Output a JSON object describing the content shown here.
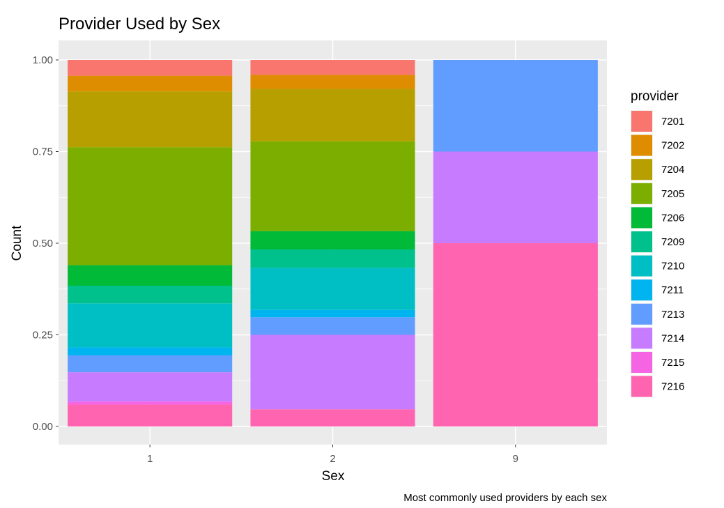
{
  "chart_data": {
    "type": "bar",
    "stacked": true,
    "normalized": true,
    "title": "Provider Used by Sex",
    "xlabel": "Sex",
    "ylabel": "Count",
    "caption": "Most commonly used providers by each sex",
    "categories": [
      "1",
      "2",
      "9"
    ],
    "ylim": [
      0,
      1
    ],
    "yticks": [
      "0.00",
      "0.25",
      "0.50",
      "0.75",
      "1.00"
    ],
    "grid": true,
    "legend": {
      "title": "provider",
      "position": "right"
    },
    "series": [
      {
        "name": "7201",
        "color": "#F8766D",
        "values": [
          0.043,
          0.041,
          0.0
        ]
      },
      {
        "name": "7202",
        "color": "#DE8C00",
        "values": [
          0.043,
          0.038,
          0.0
        ]
      },
      {
        "name": "7204",
        "color": "#B79F00",
        "values": [
          0.152,
          0.143,
          0.0
        ]
      },
      {
        "name": "7205",
        "color": "#7CAE00",
        "values": [
          0.322,
          0.245,
          0.0
        ]
      },
      {
        "name": "7206",
        "color": "#00BA38",
        "values": [
          0.056,
          0.05,
          0.0
        ]
      },
      {
        "name": "7209",
        "color": "#00C08B",
        "values": [
          0.048,
          0.05,
          0.0
        ]
      },
      {
        "name": "7210",
        "color": "#00BFC4",
        "values": [
          0.12,
          0.115,
          0.0
        ]
      },
      {
        "name": "7211",
        "color": "#00B4F0",
        "values": [
          0.022,
          0.02,
          0.0
        ]
      },
      {
        "name": "7213",
        "color": "#619CFF",
        "values": [
          0.046,
          0.048,
          0.25
        ]
      },
      {
        "name": "7214",
        "color": "#C77CFF",
        "values": [
          0.08,
          0.203,
          0.25
        ]
      },
      {
        "name": "7215",
        "color": "#F564E3",
        "values": [
          0.008,
          0.0,
          0.0
        ]
      },
      {
        "name": "7216",
        "color": "#FF64B0",
        "values": [
          0.06,
          0.047,
          0.5
        ]
      }
    ]
  }
}
